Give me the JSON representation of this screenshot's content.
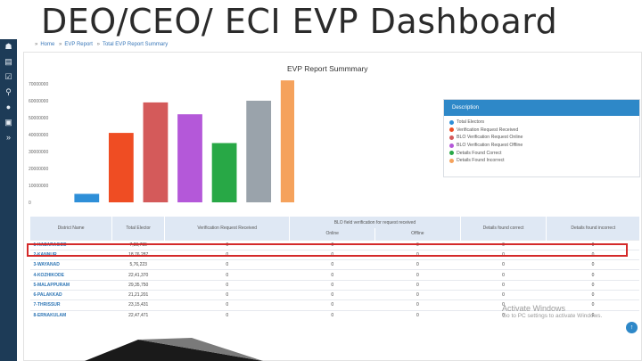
{
  "slide": {
    "title": "DEO/CEO/ ECI EVP Dashboard"
  },
  "sidebar": {
    "icons": [
      "dashboard-icon",
      "document-icon",
      "check-icon",
      "search-icon",
      "user-icon",
      "report-icon",
      "forward-icon"
    ]
  },
  "breadcrumb": {
    "home": "Home",
    "evp_report": "EVP Report",
    "current": "Total EVP Report Summary"
  },
  "chart_data": {
    "type": "bar",
    "title": "EVP Report Summmary",
    "categories": [
      "",
      "",
      "",
      "",
      "",
      "",
      ""
    ],
    "values": [
      5000000,
      41000000,
      59000000,
      52000000,
      35000000,
      60000000,
      72000000
    ],
    "colors": [
      "#2e8fd8",
      "#ef4d23",
      "#d45a5a",
      "#b458d9",
      "#28a846",
      "#9aa3ab",
      "#f5a25c"
    ],
    "yticks": [
      "70000000",
      "60000000",
      "50000000",
      "40000000",
      "30000000",
      "20000000",
      "10000000",
      "0"
    ],
    "ylim": [
      0,
      70000000
    ],
    "grid": false
  },
  "description": {
    "header": "Description",
    "items": [
      {
        "label": "Total Electors",
        "color": "#2e8fd8"
      },
      {
        "label": "Verification Request Received",
        "color": "#ef4d23"
      },
      {
        "label": "BLO Verification Request Online",
        "color": "#d45a5a"
      },
      {
        "label": "BLO Verification Request Offline",
        "color": "#b458d9"
      },
      {
        "label": "Details Found Correct",
        "color": "#28a846"
      },
      {
        "label": "Details Found Incorrect",
        "color": "#f5a25c"
      }
    ]
  },
  "table": {
    "headers": {
      "district": "District Name",
      "total": "Total Elector",
      "received": "Verification Request Received",
      "blo_group": "BLO field verification for request received",
      "online": "Online",
      "offline": "Offline",
      "correct": "Details found correct",
      "incorrect": "Details found incorrect"
    },
    "rows": [
      {
        "district": "1-KASARAGOD",
        "total": "7,83,735",
        "received": "0",
        "online": "0",
        "offline": "0",
        "correct": "0",
        "incorrect": "0"
      },
      {
        "district": "2-KANNUR",
        "total": "18,76,287",
        "received": "0",
        "online": "0",
        "offline": "0",
        "correct": "0",
        "incorrect": "0"
      },
      {
        "district": "3-WAYANAD",
        "total": "5,76,223",
        "received": "0",
        "online": "0",
        "offline": "0",
        "correct": "0",
        "incorrect": "0"
      },
      {
        "district": "4-KOZHIKODE",
        "total": "22,41,370",
        "received": "0",
        "online": "0",
        "offline": "0",
        "correct": "0",
        "incorrect": "0"
      },
      {
        "district": "5-MALAPPURAM",
        "total": "29,35,750",
        "received": "0",
        "online": "0",
        "offline": "0",
        "correct": "0",
        "incorrect": "0"
      },
      {
        "district": "6-PALAKKAD",
        "total": "21,21,201",
        "received": "0",
        "online": "0",
        "offline": "0",
        "correct": "0",
        "incorrect": "0"
      },
      {
        "district": "7-THRISSUR",
        "total": "23,15,431",
        "received": "0",
        "online": "0",
        "offline": "0",
        "correct": "0",
        "incorrect": "0"
      },
      {
        "district": "8-ERNAKULAM",
        "total": "22,47,471",
        "received": "0",
        "online": "0",
        "offline": "0",
        "correct": "0",
        "incorrect": "0"
      }
    ]
  },
  "watermark": {
    "line1": "Activate Windows",
    "line2": "Go to PC settings to activate Windows."
  },
  "scroll_top": {
    "icon": "arrow-up-icon",
    "glyph": "↑"
  }
}
